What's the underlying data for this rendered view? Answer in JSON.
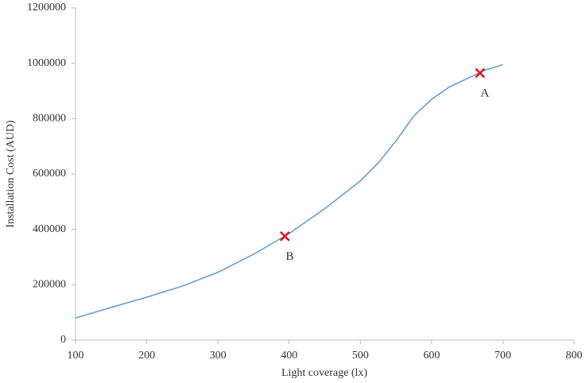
{
  "chart_data": {
    "type": "line",
    "x_label": "Light coverage (lx)",
    "y_label": "Installation Cost (AUD)",
    "series": [
      {
        "color": "#5b9bd5",
        "x": [
          100,
          150,
          200,
          250,
          300,
          350,
          400,
          450,
          500,
          525,
          550,
          575,
          600,
          625,
          650,
          675,
          700
        ],
        "values": [
          80000,
          118000,
          155000,
          195000,
          245000,
          310000,
          385000,
          475000,
          575000,
          640000,
          720000,
          810000,
          870000,
          915000,
          945000,
          975000,
          995000
        ]
      }
    ],
    "markers": [
      {
        "label": "A",
        "x": 668,
        "y": 965000,
        "color": "#e0141e"
      },
      {
        "label": "B",
        "x": 394,
        "y": 375000,
        "color": "#e0141e"
      }
    ],
    "xlim": [
      100,
      800
    ],
    "xticks": [
      100,
      200,
      300,
      400,
      500,
      600,
      700,
      800
    ],
    "ylim": [
      0,
      1200000
    ],
    "yticks": [
      0,
      200000,
      400000,
      600000,
      800000,
      1000000,
      1200000
    ],
    "grid": false
  }
}
